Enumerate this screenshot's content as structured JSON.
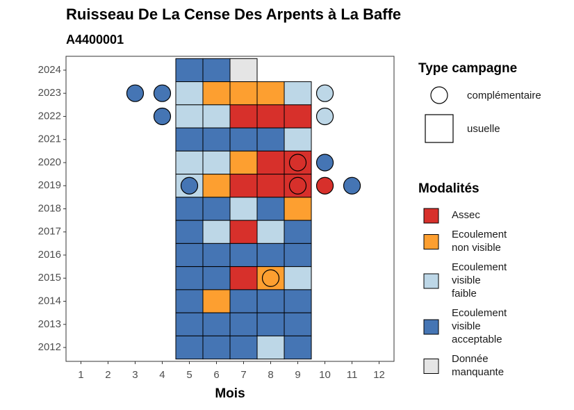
{
  "chart_data": {
    "type": "tile",
    "title": "Ruisseau De La Cense Des Arpents à La Baffe",
    "subtitle": "A4400001",
    "x_label": "Mois",
    "xlim": [
      0.45,
      12.55
    ],
    "ylim": [
      2011.4,
      2024.6
    ],
    "xticks": [
      1,
      2,
      3,
      4,
      5,
      6,
      7,
      8,
      9,
      10,
      11,
      12
    ],
    "yticks": [
      2012,
      2013,
      2014,
      2015,
      2016,
      2017,
      2018,
      2019,
      2020,
      2021,
      2022,
      2023,
      2024
    ],
    "tiles": [
      {
        "x": 5,
        "y": 2024,
        "color": "#4575b4"
      },
      {
        "x": 6,
        "y": 2024,
        "color": "#4575b4"
      },
      {
        "x": 7,
        "y": 2024,
        "color": "#e5e5e5"
      },
      {
        "x": 5,
        "y": 2023,
        "color": "#bdd7e7"
      },
      {
        "x": 6,
        "y": 2023,
        "color": "#fd9f30"
      },
      {
        "x": 7,
        "y": 2023,
        "color": "#fd9f30"
      },
      {
        "x": 8,
        "y": 2023,
        "color": "#fd9f30"
      },
      {
        "x": 9,
        "y": 2023,
        "color": "#bdd7e7"
      },
      {
        "x": 5,
        "y": 2022,
        "color": "#bdd7e7"
      },
      {
        "x": 6,
        "y": 2022,
        "color": "#bdd7e7"
      },
      {
        "x": 7,
        "y": 2022,
        "color": "#d7302b"
      },
      {
        "x": 8,
        "y": 2022,
        "color": "#d7302b"
      },
      {
        "x": 9,
        "y": 2022,
        "color": "#d7302b"
      },
      {
        "x": 5,
        "y": 2021,
        "color": "#4575b4"
      },
      {
        "x": 6,
        "y": 2021,
        "color": "#4575b4"
      },
      {
        "x": 7,
        "y": 2021,
        "color": "#4575b4"
      },
      {
        "x": 8,
        "y": 2021,
        "color": "#4575b4"
      },
      {
        "x": 9,
        "y": 2021,
        "color": "#bdd7e7"
      },
      {
        "x": 5,
        "y": 2020,
        "color": "#bdd7e7"
      },
      {
        "x": 6,
        "y": 2020,
        "color": "#bdd7e7"
      },
      {
        "x": 7,
        "y": 2020,
        "color": "#fd9f30"
      },
      {
        "x": 8,
        "y": 2020,
        "color": "#d7302b"
      },
      {
        "x": 9,
        "y": 2020,
        "color": "#d7302b"
      },
      {
        "x": 5,
        "y": 2019,
        "color": "#bdd7e7"
      },
      {
        "x": 6,
        "y": 2019,
        "color": "#fd9f30"
      },
      {
        "x": 7,
        "y": 2019,
        "color": "#d7302b"
      },
      {
        "x": 8,
        "y": 2019,
        "color": "#d7302b"
      },
      {
        "x": 9,
        "y": 2019,
        "color": "#d7302b"
      },
      {
        "x": 5,
        "y": 2018,
        "color": "#4575b4"
      },
      {
        "x": 6,
        "y": 2018,
        "color": "#4575b4"
      },
      {
        "x": 7,
        "y": 2018,
        "color": "#bdd7e7"
      },
      {
        "x": 8,
        "y": 2018,
        "color": "#4575b4"
      },
      {
        "x": 9,
        "y": 2018,
        "color": "#fd9f30"
      },
      {
        "x": 5,
        "y": 2017,
        "color": "#4575b4"
      },
      {
        "x": 6,
        "y": 2017,
        "color": "#bdd7e7"
      },
      {
        "x": 7,
        "y": 2017,
        "color": "#d7302b"
      },
      {
        "x": 8,
        "y": 2017,
        "color": "#bdd7e7"
      },
      {
        "x": 9,
        "y": 2017,
        "color": "#4575b4"
      },
      {
        "x": 5,
        "y": 2016,
        "color": "#4575b4"
      },
      {
        "x": 6,
        "y": 2016,
        "color": "#4575b4"
      },
      {
        "x": 7,
        "y": 2016,
        "color": "#4575b4"
      },
      {
        "x": 8,
        "y": 2016,
        "color": "#4575b4"
      },
      {
        "x": 9,
        "y": 2016,
        "color": "#4575b4"
      },
      {
        "x": 5,
        "y": 2015,
        "color": "#4575b4"
      },
      {
        "x": 6,
        "y": 2015,
        "color": "#4575b4"
      },
      {
        "x": 7,
        "y": 2015,
        "color": "#d7302b"
      },
      {
        "x": 8,
        "y": 2015,
        "color": "#fd9f30"
      },
      {
        "x": 9,
        "y": 2015,
        "color": "#bdd7e7"
      },
      {
        "x": 5,
        "y": 2014,
        "color": "#4575b4"
      },
      {
        "x": 6,
        "y": 2014,
        "color": "#fd9f30"
      },
      {
        "x": 7,
        "y": 2014,
        "color": "#4575b4"
      },
      {
        "x": 8,
        "y": 2014,
        "color": "#4575b4"
      },
      {
        "x": 9,
        "y": 2014,
        "color": "#4575b4"
      },
      {
        "x": 5,
        "y": 2013,
        "color": "#4575b4"
      },
      {
        "x": 6,
        "y": 2013,
        "color": "#4575b4"
      },
      {
        "x": 7,
        "y": 2013,
        "color": "#4575b4"
      },
      {
        "x": 8,
        "y": 2013,
        "color": "#4575b4"
      },
      {
        "x": 9,
        "y": 2013,
        "color": "#4575b4"
      },
      {
        "x": 5,
        "y": 2012,
        "color": "#4575b4"
      },
      {
        "x": 6,
        "y": 2012,
        "color": "#4575b4"
      },
      {
        "x": 7,
        "y": 2012,
        "color": "#4575b4"
      },
      {
        "x": 8,
        "y": 2012,
        "color": "#bdd7e7"
      },
      {
        "x": 9,
        "y": 2012,
        "color": "#4575b4"
      }
    ],
    "points": [
      {
        "x": 3,
        "y": 2023,
        "color": "#4575b4"
      },
      {
        "x": 4,
        "y": 2023,
        "color": "#4575b4"
      },
      {
        "x": 10,
        "y": 2023,
        "color": "#bdd7e7"
      },
      {
        "x": 4,
        "y": 2022,
        "color": "#4575b4"
      },
      {
        "x": 10,
        "y": 2022,
        "color": "#bdd7e7"
      },
      {
        "x": 9,
        "y": 2020,
        "color": "#d7302b"
      },
      {
        "x": 10,
        "y": 2020,
        "color": "#4575b4"
      },
      {
        "x": 5,
        "y": 2019,
        "color": "#4575b4"
      },
      {
        "x": 9,
        "y": 2019,
        "color": "#d7302b"
      },
      {
        "x": 10,
        "y": 2019,
        "color": "#d7302b"
      },
      {
        "x": 11,
        "y": 2019,
        "color": "#4575b4"
      },
      {
        "x": 8,
        "y": 2015,
        "color": "#fd9f30"
      }
    ],
    "legend_campagne": {
      "title": "Type campagne",
      "items": [
        "complémentaire",
        "usuelle"
      ]
    },
    "legend_modalites": {
      "title": "Modalités",
      "items": [
        {
          "label": [
            "Assec"
          ],
          "color": "#d7302b"
        },
        {
          "label": [
            "Ecoulement",
            "non visible"
          ],
          "color": "#fd9f30"
        },
        {
          "label": [
            "Ecoulement",
            "visible",
            "faible"
          ],
          "color": "#bdd7e7"
        },
        {
          "label": [
            "Ecoulement",
            "visible",
            "acceptable"
          ],
          "color": "#4575b4"
        },
        {
          "label": [
            "Donnée",
            "manquante"
          ],
          "color": "#e5e5e5"
        }
      ]
    }
  }
}
